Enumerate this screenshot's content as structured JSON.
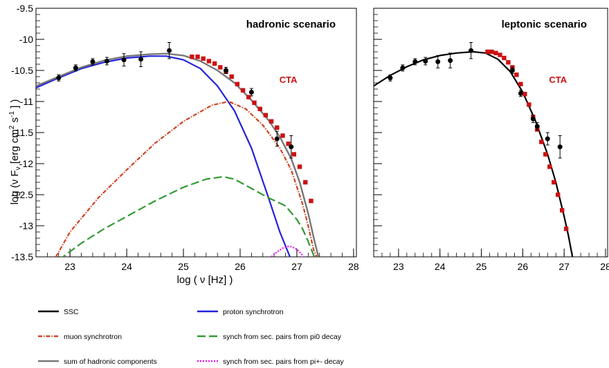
{
  "chart_data": {
    "type": "scatter",
    "y_axis": {
      "label": "log (ν F_ν [erg cm^2 s^-1 ] )",
      "label_parts": {
        "main": "log (ν F",
        "sub": "ν",
        "mid": " [erg cm",
        "sup1": "2",
        "mid2": " s",
        "sup2": "-1",
        "end": " ] )"
      },
      "ylim": [
        -13.5,
        -9.5
      ],
      "ticks": [
        "-9.5",
        "-10",
        "-10.5",
        "-11",
        "-11.5",
        "-12",
        "-12.5",
        "-13",
        "-13.5"
      ],
      "tick_values": [
        -9.5,
        -10,
        -10.5,
        -11,
        -11.5,
        -12,
        -12.5,
        -13,
        -13.5
      ]
    },
    "x_axis": {
      "label": "log ( ν [Hz] )",
      "xlim": [
        22.4,
        28.05
      ],
      "ticks": [
        "23",
        "24",
        "25",
        "26",
        "27",
        "28"
      ],
      "tick_values": [
        23,
        24,
        25,
        26,
        27,
        28
      ]
    },
    "panels": [
      {
        "id": "hadronic",
        "title": "hadronic scenario",
        "cta_label": "CTA",
        "xlim": [
          22.4,
          28.05
        ],
        "ylim": [
          -13.5,
          -9.5
        ],
        "points": {
          "x": [
            22.8,
            23.1,
            23.4,
            23.65,
            23.95,
            24.25,
            24.75,
            25.75,
            26.2,
            26.65,
            26.9
          ],
          "y": [
            -10.62,
            -10.46,
            -10.36,
            -10.35,
            -10.33,
            -10.32,
            -10.18,
            -10.5,
            -10.85,
            -11.6,
            -11.73
          ],
          "err": [
            0.05,
            0.05,
            0.05,
            0.06,
            0.1,
            0.12,
            0.13,
            0.05,
            0.06,
            0.12,
            0.18
          ]
        },
        "cta": {
          "x": [
            25.15,
            25.25,
            25.35,
            25.45,
            25.55,
            25.65,
            25.75,
            25.85,
            25.95,
            26.05,
            26.15,
            26.25,
            26.35,
            26.45,
            26.55,
            26.65,
            26.75,
            26.85,
            26.95,
            27.05,
            27.15,
            27.25
          ],
          "y": [
            -10.28,
            -10.28,
            -10.31,
            -10.35,
            -10.39,
            -10.45,
            -10.52,
            -10.6,
            -10.72,
            -10.82,
            -10.93,
            -11.02,
            -11.12,
            -11.22,
            -11.32,
            -11.42,
            -11.55,
            -11.68,
            -11.85,
            -12.05,
            -12.3,
            -12.6
          ]
        },
        "curves": [
          {
            "key": "proton",
            "color": "#2222dd",
            "dash": "",
            "x": [
              22.4,
              22.8,
              23.2,
              23.6,
              24.0,
              24.4,
              24.7,
              25.0,
              25.3,
              25.6,
              25.9,
              26.2,
              26.5,
              26.7,
              26.9,
              26.95
            ],
            "y": [
              -10.78,
              -10.62,
              -10.47,
              -10.37,
              -10.3,
              -10.27,
              -10.27,
              -10.33,
              -10.47,
              -10.75,
              -11.15,
              -11.75,
              -12.55,
              -13.1,
              -13.55,
              -13.6
            ]
          },
          {
            "key": "muon",
            "color": "#cc4422",
            "dash": "6,2,1.5,2",
            "x": [
              22.75,
              23.0,
              23.5,
              24.0,
              24.5,
              25.0,
              25.5,
              25.8,
              26.1,
              26.4,
              26.7,
              26.9,
              27.1,
              27.2,
              27.3,
              27.35
            ],
            "y": [
              -13.5,
              -13.1,
              -12.55,
              -12.1,
              -11.67,
              -11.32,
              -11.06,
              -11.0,
              -11.12,
              -11.38,
              -11.75,
              -12.1,
              -12.65,
              -13.0,
              -13.4,
              -13.5
            ]
          },
          {
            "key": "pi0",
            "color": "#339933",
            "dash": "12,5",
            "x": [
              22.8,
              23.2,
              23.6,
              24.0,
              24.5,
              25.0,
              25.4,
              25.7,
              25.9,
              26.2,
              26.5,
              26.8,
              27.0,
              27.1,
              27.2,
              27.35
            ],
            "y": [
              -13.55,
              -13.28,
              -13.05,
              -12.85,
              -12.6,
              -12.38,
              -12.25,
              -12.21,
              -12.25,
              -12.4,
              -12.55,
              -12.68,
              -12.9,
              -13.05,
              -13.25,
              -13.6
            ]
          },
          {
            "key": "pipm",
            "color": "#ee11ee",
            "dash": "2,2",
            "x": [
              26.55,
              26.65,
              26.75,
              26.85,
              26.92,
              27.0,
              27.08,
              27.15
            ],
            "y": [
              -13.5,
              -13.42,
              -13.36,
              -13.33,
              -13.34,
              -13.38,
              -13.45,
              -13.55
            ]
          },
          {
            "key": "sum",
            "color": "#777777",
            "dash": "",
            "x": [
              22.4,
              22.8,
              23.2,
              23.6,
              24.0,
              24.4,
              24.7,
              25.0,
              25.3,
              25.6,
              25.9,
              26.2,
              26.5,
              26.7,
              26.9,
              27.05,
              27.2,
              27.3,
              27.38,
              27.42
            ],
            "y": [
              -10.75,
              -10.6,
              -10.45,
              -10.34,
              -10.27,
              -10.24,
              -10.23,
              -10.26,
              -10.35,
              -10.5,
              -10.7,
              -10.98,
              -11.3,
              -11.57,
              -11.92,
              -12.3,
              -12.8,
              -13.2,
              -13.5,
              -13.6
            ]
          }
        ]
      },
      {
        "id": "leptonic",
        "title": "leptonic scenario",
        "cta_label": "CTA",
        "xlim": [
          22.4,
          28.05
        ],
        "ylim": [
          -13.5,
          -9.5
        ],
        "points": {
          "x": [
            22.8,
            23.1,
            23.4,
            23.65,
            23.95,
            24.25,
            24.75,
            25.75,
            25.95,
            26.25,
            26.35,
            26.6,
            26.9
          ],
          "y": [
            -10.62,
            -10.46,
            -10.36,
            -10.35,
            -10.36,
            -10.34,
            -10.18,
            -10.5,
            -10.87,
            -11.28,
            -11.4,
            -11.6,
            -11.73
          ],
          "err": [
            0.05,
            0.05,
            0.05,
            0.06,
            0.1,
            0.12,
            0.13,
            0.05,
            0.05,
            0.06,
            0.06,
            0.1,
            0.18
          ]
        },
        "cta": {
          "x": [
            25.15,
            25.25,
            25.35,
            25.45,
            25.55,
            25.65,
            25.75,
            25.85,
            25.95,
            26.05,
            26.15,
            26.25,
            26.35,
            26.45,
            26.55,
            26.65,
            26.75,
            26.85,
            26.95,
            27.05
          ],
          "y": [
            -10.2,
            -10.2,
            -10.22,
            -10.25,
            -10.3,
            -10.37,
            -10.45,
            -10.57,
            -10.72,
            -10.88,
            -11.05,
            -11.25,
            -11.45,
            -11.65,
            -11.85,
            -12.05,
            -12.3,
            -12.5,
            -12.75,
            -13.05
          ]
        },
        "curves": [
          {
            "key": "ssc",
            "color": "#000000",
            "dash": "",
            "x": [
              22.4,
              22.8,
              23.2,
              23.6,
              24.0,
              24.4,
              24.8,
              25.1,
              25.4,
              25.7,
              26.0,
              26.3,
              26.6,
              26.8,
              27.0,
              27.1,
              27.2,
              27.25
            ],
            "y": [
              -10.75,
              -10.58,
              -10.44,
              -10.33,
              -10.26,
              -10.22,
              -10.2,
              -10.22,
              -10.32,
              -10.52,
              -10.85,
              -11.3,
              -11.85,
              -12.3,
              -12.85,
              -13.15,
              -13.5,
              -13.65
            ]
          }
        ]
      }
    ],
    "legend": [
      {
        "key": "ssc",
        "label": "SSC",
        "color": "#000000",
        "dash": ""
      },
      {
        "key": "proton",
        "label": "proton synchrotron",
        "color": "#2222dd",
        "dash": ""
      },
      {
        "key": "muon",
        "label": "muon synchrotron",
        "color": "#cc4422",
        "dash": "6,2,1.5,2"
      },
      {
        "key": "pi0",
        "label": "synch from sec. pairs from pi0 decay",
        "color": "#339933",
        "dash": "12,5"
      },
      {
        "key": "sum",
        "label": "sum of hadronic components",
        "color": "#777777",
        "dash": ""
      },
      {
        "key": "pipm",
        "label": "synch from sec. pairs from pi+- decay",
        "color": "#ee11ee",
        "dash": "2,2"
      }
    ],
    "marker_colors": {
      "data": "#000000",
      "cta": "#cc1111"
    }
  }
}
